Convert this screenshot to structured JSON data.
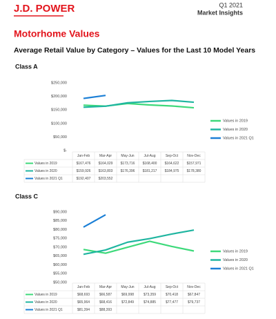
{
  "header": {
    "brand": "J.D. POWER",
    "period": "Q1 2021",
    "tagline": "Market Insights"
  },
  "title": "Motorhome Values",
  "subtitle": "Average Retail Value by Category – Values for the Last 10 Model Years",
  "chart_data": [
    {
      "type": "line",
      "title": "Class A",
      "categories": [
        "Jan-Feb",
        "Mar-Apr",
        "May-Jun",
        "Jul-Aug",
        "Sep-Oct",
        "Nov-Dec"
      ],
      "series": [
        {
          "name": "Values in 2019",
          "color": "#3dd97a",
          "values": [
            167476,
            164029,
            173716,
            168400,
            164622,
            157971
          ],
          "value_labels": [
            "$167,476",
            "$164,029",
            "$173,716",
            "$168,400",
            "$164,622",
            "$157,971"
          ]
        },
        {
          "name": "Values in 2020",
          "color": "#1fb5a0",
          "values": [
            159926,
            163803,
            176396,
            181217,
            184975,
            178380
          ],
          "value_labels": [
            "$159,926",
            "$163,803",
            "$176,396",
            "$181,217",
            "$184,975",
            "$178,380"
          ]
        },
        {
          "name": "Values in 2021 Q1",
          "color": "#1b7fd6",
          "values": [
            192407,
            203552,
            null,
            null,
            null,
            null
          ],
          "value_labels": [
            "$192,407",
            "$203,552",
            null,
            null,
            null,
            null
          ]
        }
      ],
      "ylim": [
        0,
        250000
      ],
      "yticks": [
        {
          "value": 0,
          "label": "$-"
        },
        {
          "value": 50000,
          "label": "$50,000"
        },
        {
          "value": 100000,
          "label": "$100,000"
        },
        {
          "value": 150000,
          "label": "$150,000"
        },
        {
          "value": 200000,
          "label": "$200,000"
        },
        {
          "value": 250000,
          "label": "$250,000"
        }
      ],
      "legend": "right"
    },
    {
      "type": "line",
      "title": "Class C",
      "categories": [
        "Jan-Feb",
        "Mar-Apr",
        "May-Jun",
        "Jul-Aug",
        "Sep-Oct",
        "Nov-Dec"
      ],
      "series": [
        {
          "name": "Values in 2019",
          "color": "#3dd97a",
          "values": [
            68693,
            66587,
            69998,
            73359,
            70418,
            67847
          ],
          "value_labels": [
            "$68,693",
            "$66,587",
            "$69,998",
            "$73,359",
            "$70,418",
            "$67,847"
          ]
        },
        {
          "name": "Values in 2020",
          "color": "#1fb5a0",
          "values": [
            65964,
            68416,
            72849,
            74885,
            77477,
            79737
          ],
          "value_labels": [
            "$65,964",
            "$68,416",
            "$72,849",
            "$74,885",
            "$77,477",
            "$79,737"
          ]
        },
        {
          "name": "Values in 2021 Q1",
          "color": "#1b7fd6",
          "values": [
            81394,
            88393,
            null,
            null,
            null,
            null
          ],
          "value_labels": [
            "$81,394",
            "$88,393",
            null,
            null,
            null,
            null
          ]
        }
      ],
      "ylim": [
        50000,
        90000
      ],
      "yticks": [
        {
          "value": 50000,
          "label": "$50,000"
        },
        {
          "value": 55000,
          "label": "$55,000"
        },
        {
          "value": 60000,
          "label": "$60,000"
        },
        {
          "value": 65000,
          "label": "$65,000"
        },
        {
          "value": 70000,
          "label": "$70,000"
        },
        {
          "value": 75000,
          "label": "$75,000"
        },
        {
          "value": 80000,
          "label": "$80,000"
        },
        {
          "value": 85000,
          "label": "$85,000"
        },
        {
          "value": 90000,
          "label": "$90,000"
        }
      ],
      "legend": "right"
    }
  ]
}
